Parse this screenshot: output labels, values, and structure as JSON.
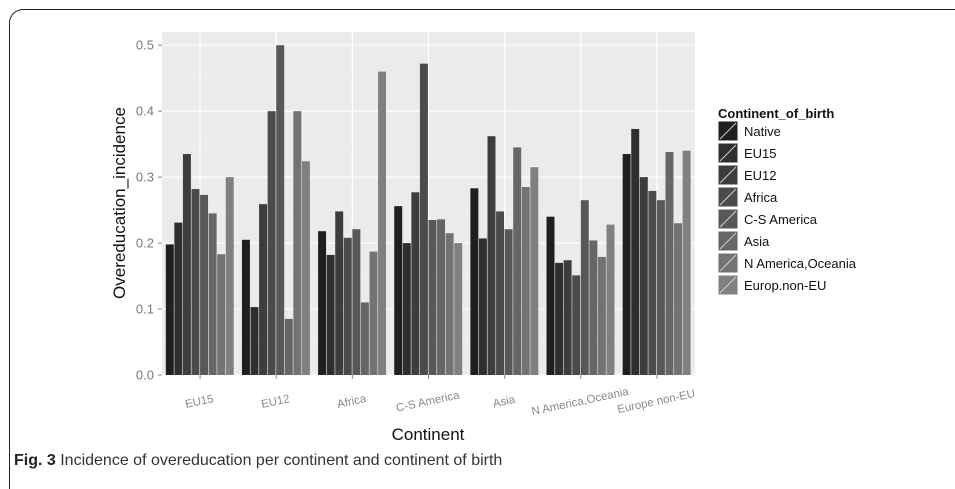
{
  "figure": {
    "caption_label": "Fig. 3",
    "caption_text": "Incidence of overeducation per continent and continent of birth"
  },
  "chart_data": {
    "type": "bar",
    "xlabel": "Continent",
    "ylabel": "Overeducation_incidence",
    "ylim": [
      0,
      0.52
    ],
    "yticks": [
      0.0,
      0.1,
      0.2,
      0.3,
      0.4,
      0.5
    ],
    "ytick_labels": [
      "0.0",
      "0.1",
      "0.2",
      "0.3",
      "0.4",
      "0.5"
    ],
    "grid": true,
    "legend_position": "right",
    "legend_title": "Continent_of_birth",
    "categories": [
      "EU15",
      "EU12",
      "Africa",
      "C-S America",
      "Asia",
      "N America,Oceania",
      "Europe non-EU"
    ],
    "series": [
      {
        "name": "Native",
        "color": "#1f1f1f",
        "values": [
          0.198,
          0.205,
          0.218,
          0.256,
          0.283,
          0.24,
          0.335
        ]
      },
      {
        "name": "EU15",
        "color": "#2f2f2f",
        "values": [
          0.231,
          0.103,
          0.182,
          0.2,
          0.207,
          0.17,
          0.373
        ]
      },
      {
        "name": "EU12",
        "color": "#3d3d3d",
        "values": [
          0.335,
          0.259,
          0.248,
          0.277,
          0.362,
          0.174,
          0.3
        ]
      },
      {
        "name": "Africa",
        "color": "#4b4b4b",
        "values": [
          0.282,
          0.4,
          0.208,
          0.472,
          0.248,
          0.151,
          0.279
        ]
      },
      {
        "name": "C-S America",
        "color": "#585858",
        "values": [
          0.273,
          0.5,
          0.221,
          0.235,
          0.221,
          0.265,
          0.265
        ]
      },
      {
        "name": "Asia",
        "color": "#666666",
        "values": [
          0.245,
          0.085,
          0.11,
          0.236,
          0.345,
          0.204,
          0.338
        ]
      },
      {
        "name": "N America,Oceania",
        "color": "#737373",
        "values": [
          0.183,
          0.4,
          0.187,
          0.215,
          0.285,
          0.179,
          0.23
        ]
      },
      {
        "name": "Europ.non-EU",
        "color": "#808080",
        "values": [
          0.3,
          0.324,
          0.46,
          0.2,
          0.315,
          0.228,
          0.34
        ]
      }
    ]
  }
}
